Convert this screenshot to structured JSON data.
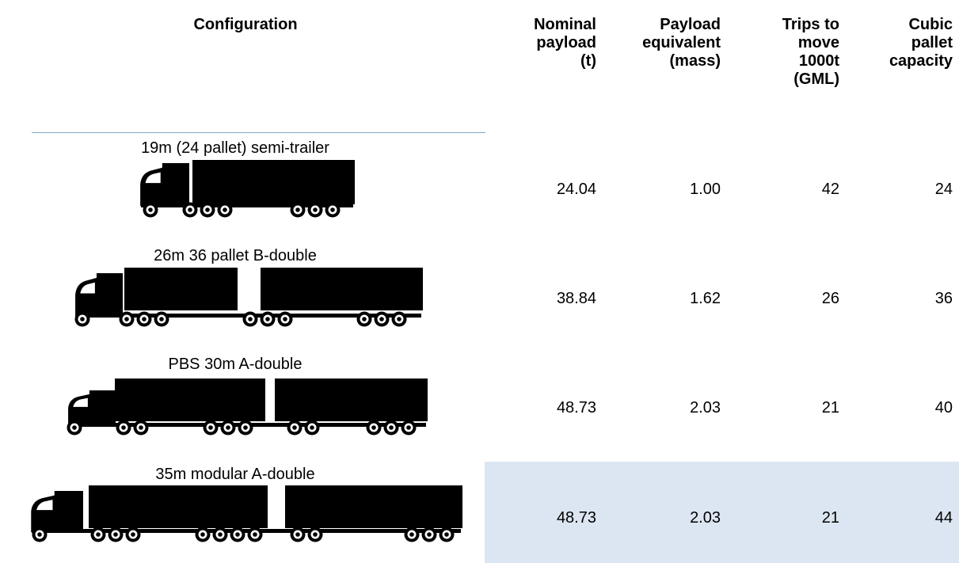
{
  "table": {
    "header": {
      "configuration": "Configuration",
      "columns": [
        [
          "Nominal",
          "payload",
          "(t)"
        ],
        [
          "Payload",
          "equivalent",
          "(mass)"
        ],
        [
          "Trips to",
          "move",
          "1000t",
          "(GML)"
        ],
        [
          "Cubic",
          "pallet",
          "capacity"
        ]
      ]
    },
    "rows": [
      {
        "configuration": "19m (24 pallet) semi-trailer",
        "values": [
          "24.04",
          "1.00",
          "42",
          "24"
        ]
      },
      {
        "configuration": "26m 36 pallet B-double",
        "values": [
          "38.84",
          "1.62",
          "26",
          "36"
        ]
      },
      {
        "configuration": "PBS 30m A-double",
        "values": [
          "48.73",
          "2.03",
          "21",
          "40"
        ]
      },
      {
        "configuration": "35m modular A-double",
        "values": [
          "48.73",
          "2.03",
          "21",
          "44"
        ],
        "highlighted": true
      }
    ]
  }
}
